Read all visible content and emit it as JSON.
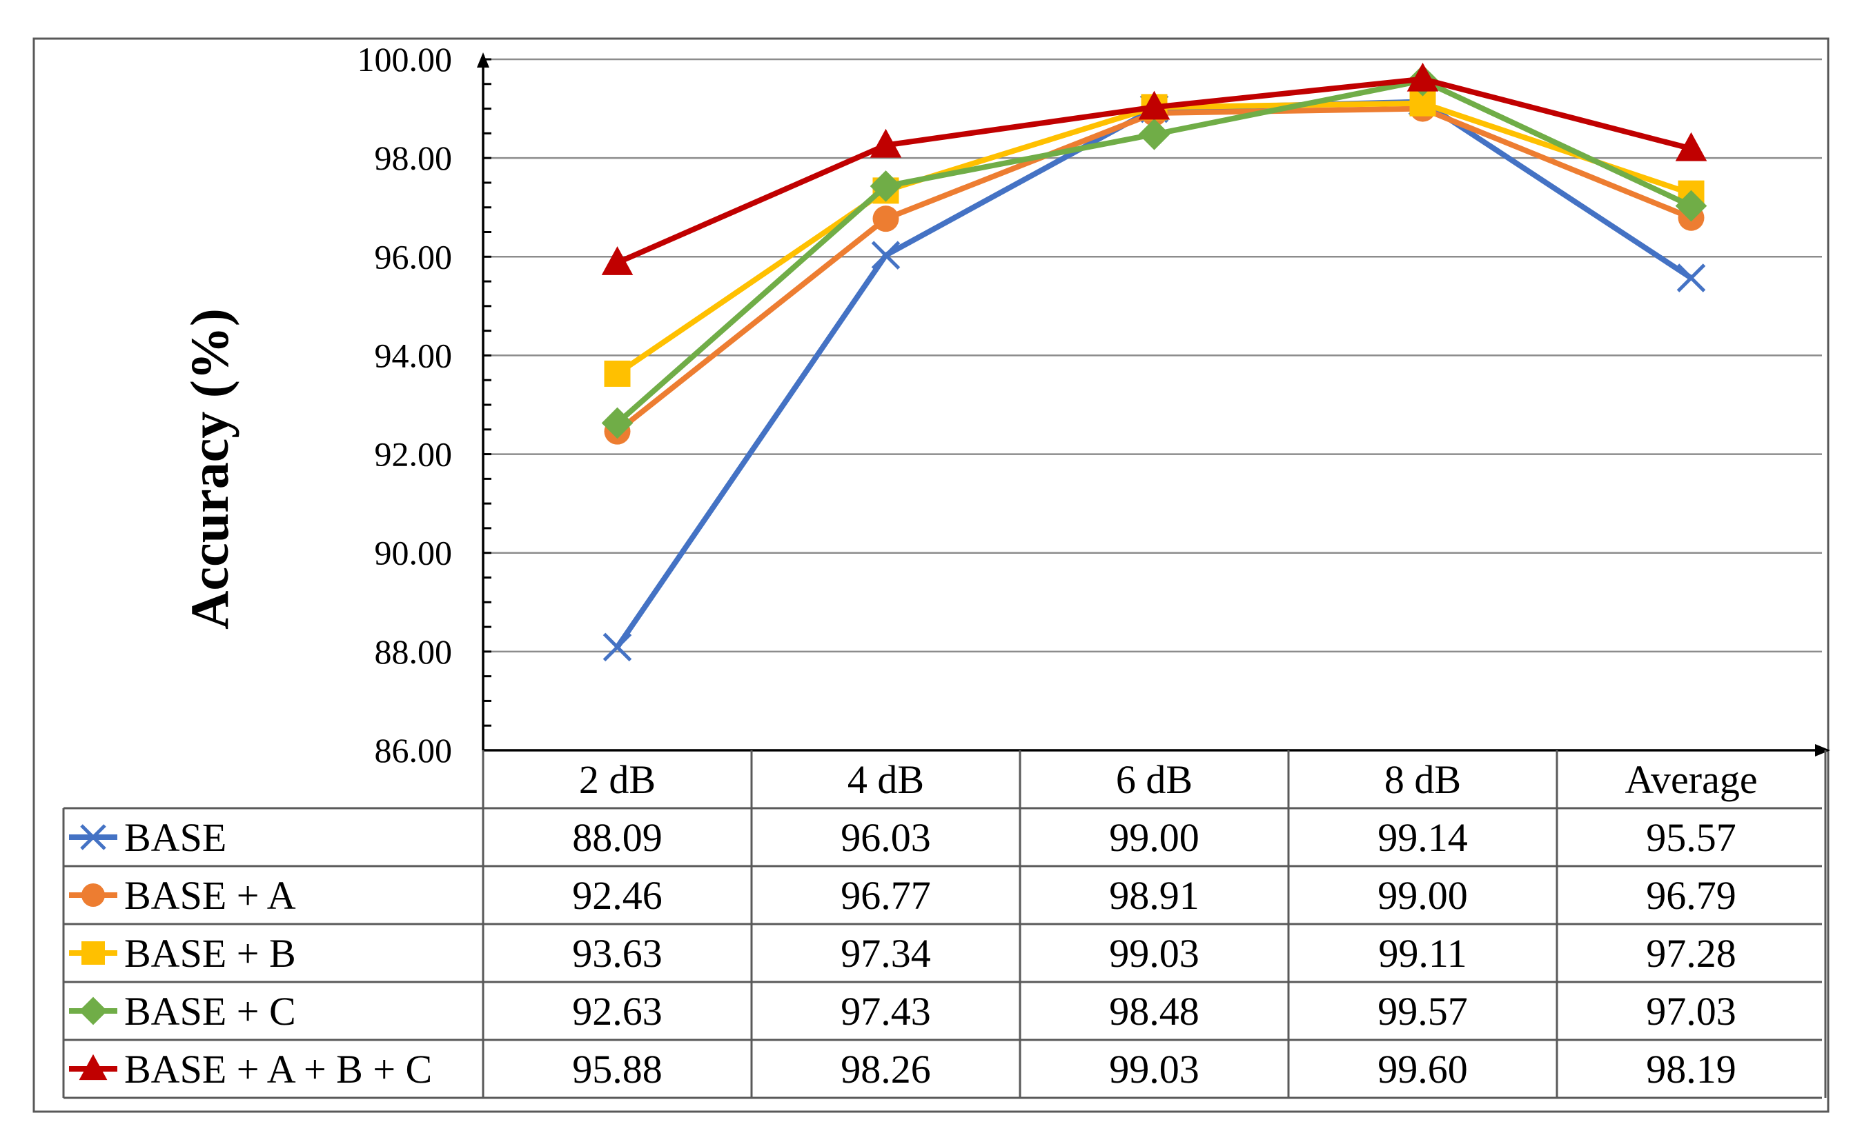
{
  "chart_data": {
    "type": "line",
    "title": "",
    "xlabel": "",
    "ylabel": "Accuracy (%)",
    "ylim": [
      86,
      100
    ],
    "ytick_step": 2,
    "ytick_labels": [
      "86.00",
      "88.00",
      "90.00",
      "92.00",
      "94.00",
      "96.00",
      "98.00",
      "100.00"
    ],
    "categories": [
      "2 dB",
      "4 dB",
      "6 dB",
      "8 dB",
      "Average"
    ],
    "series": [
      {
        "name": "BASE",
        "marker": "x",
        "color": "#4472C4",
        "values": [
          88.09,
          96.03,
          99.0,
          99.14,
          95.57
        ],
        "labels": [
          "88.09",
          "96.03",
          "99.00",
          "99.14",
          "95.57"
        ]
      },
      {
        "name": "BASE + A",
        "marker": "circle",
        "color": "#ED7D31",
        "values": [
          92.46,
          96.77,
          98.91,
          99.0,
          96.79
        ],
        "labels": [
          "92.46",
          "96.77",
          "98.91",
          "99.00",
          "96.79"
        ]
      },
      {
        "name": "BASE + B",
        "marker": "square",
        "color": "#FFC000",
        "values": [
          93.63,
          97.34,
          99.03,
          99.11,
          97.28
        ],
        "labels": [
          "93.63",
          "97.34",
          "99.03",
          "99.11",
          "97.28"
        ]
      },
      {
        "name": "BASE + C",
        "marker": "diamond",
        "color": "#70AD47",
        "values": [
          92.63,
          97.43,
          98.48,
          99.57,
          97.03
        ],
        "labels": [
          "92.63",
          "97.43",
          "98.48",
          "99.57",
          "97.03"
        ]
      },
      {
        "name": "BASE + A + B + C",
        "marker": "triangle",
        "color": "#C00000",
        "values": [
          95.88,
          98.26,
          99.03,
          99.6,
          98.19
        ],
        "labels": [
          "95.88",
          "98.26",
          "99.03",
          "99.60",
          "98.19"
        ]
      }
    ],
    "grid": true,
    "legend": "data-table-below"
  }
}
